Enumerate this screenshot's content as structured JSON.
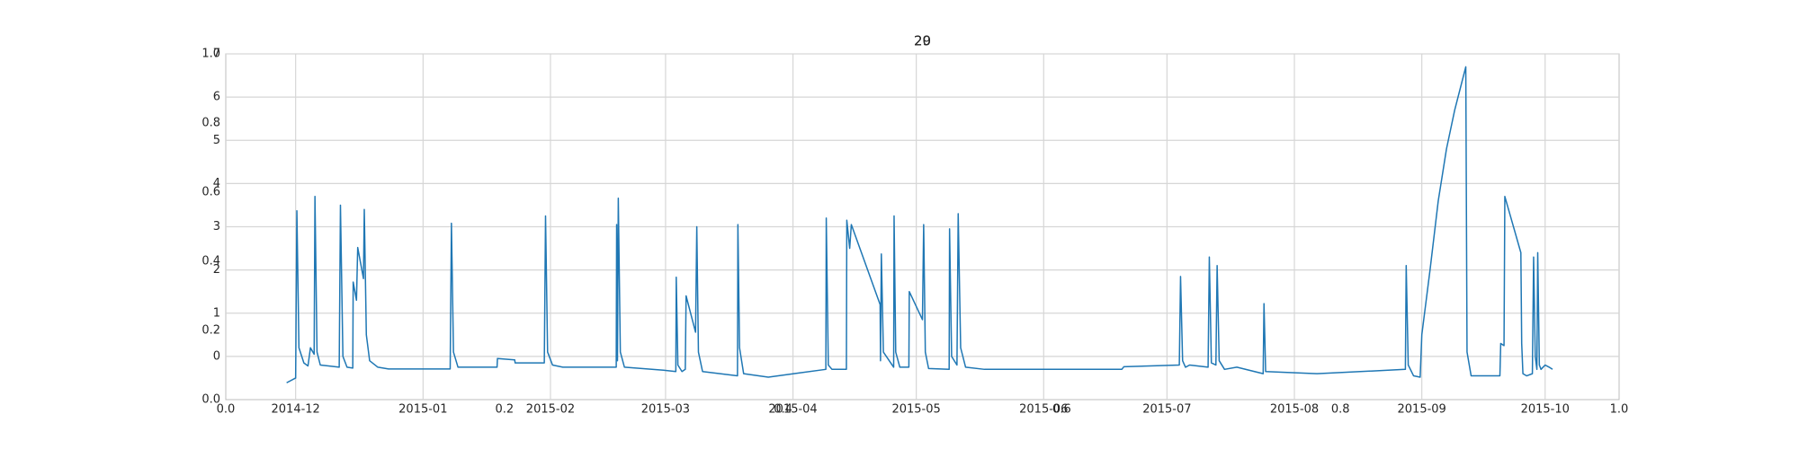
{
  "chart_data": [
    {
      "type": "axes",
      "title": "20",
      "xlim": [
        0,
        1
      ],
      "xticks": [
        {
          "value": 0,
          "label": "0.0"
        },
        {
          "value": 0.2,
          "label": "0.2"
        },
        {
          "value": 0.4,
          "label": "0.4"
        },
        {
          "value": 0.6,
          "label": "0.6"
        },
        {
          "value": 0.8,
          "label": "0.8"
        },
        {
          "value": 1,
          "label": "1.0"
        }
      ],
      "ylim": [
        0,
        1
      ],
      "yticks": [
        {
          "value": 0,
          "label": "0.0"
        },
        {
          "value": 0.2,
          "label": "0.2"
        },
        {
          "value": 0.4,
          "label": "0.4"
        },
        {
          "value": 0.6,
          "label": "0.6"
        },
        {
          "value": 0.8,
          "label": "0.8"
        },
        {
          "value": 1,
          "label": "1.0"
        }
      ],
      "grid": false
    },
    {
      "type": "line",
      "title": "29",
      "grid": true,
      "xlim": [
        -17,
        322
      ],
      "xticks": [
        {
          "value": 0,
          "label": "2014-12"
        },
        {
          "value": 31,
          "label": "2015-01"
        },
        {
          "value": 62,
          "label": "2015-02"
        },
        {
          "value": 90,
          "label": "2015-03"
        },
        {
          "value": 121,
          "label": "2015-04"
        },
        {
          "value": 151,
          "label": "2015-05"
        },
        {
          "value": 182,
          "label": "2015-06"
        },
        {
          "value": 212,
          "label": "2015-07"
        },
        {
          "value": 243,
          "label": "2015-08"
        },
        {
          "value": 274,
          "label": "2015-09"
        },
        {
          "value": 304,
          "label": "2015-10"
        }
      ],
      "ylim": [
        -1,
        7
      ],
      "yticks": [
        0,
        1,
        2,
        3,
        4,
        5,
        6,
        7
      ],
      "color": "#1f77b4",
      "x": [
        -2.2,
        0,
        0.3,
        0.8,
        2,
        3,
        3.6,
        4.5,
        4.7,
        5.2,
        6,
        8,
        10.6,
        10.9,
        11.5,
        12.5,
        13.9,
        14,
        14.8,
        15.1,
        16.5,
        16.7,
        17.2,
        18,
        20,
        22.6,
        37.6,
        37.9,
        38.4,
        39.5,
        49,
        49.1,
        53.3,
        53.4,
        60.5,
        60.8,
        61.3,
        62.5,
        65,
        78,
        78.1,
        78.3,
        78.5,
        79,
        80,
        89.5,
        92.5,
        92.6,
        93,
        94,
        94.8,
        95,
        97.3,
        97.6,
        98,
        99,
        107.5,
        107.6,
        108,
        109,
        115,
        122.8,
        129,
        129.1,
        129.6,
        130.5,
        134,
        134.1,
        134.8,
        135.2,
        142.2,
        142.3,
        142.5,
        143,
        145.5,
        145.6,
        146,
        147,
        149.2,
        149.3,
        152.5,
        152.8,
        153.2,
        154,
        159,
        159.1,
        159.6,
        160.9,
        161.2,
        161.8,
        163,
        167.6,
        201,
        201.5,
        215,
        215.3,
        215.8,
        216.5,
        217.5,
        222,
        222.3,
        222.8,
        223.9,
        224.2,
        224.7,
        226,
        229,
        235.4,
        235.6,
        236,
        248.5,
        270,
        270.2,
        270.7,
        272,
        273.6,
        274,
        276,
        278,
        280,
        282,
        284.7,
        285,
        286,
        293,
        293.2,
        294,
        294.2,
        298.1,
        298.3,
        298.6,
        299.5,
        300.9,
        301.2,
        301.6,
        302,
        302.2,
        302.6,
        303,
        304,
        305,
        305.8
      ],
      "values": [
        -0.61,
        -0.5,
        3.37,
        0.2,
        -0.15,
        -0.22,
        0.2,
        0.05,
        3.7,
        0.1,
        -0.2,
        -0.22,
        -0.25,
        3.5,
        0,
        -0.25,
        -0.27,
        1.72,
        1.3,
        2.52,
        1.8,
        3.4,
        0.5,
        -0.1,
        -0.25,
        -0.29,
        -0.29,
        3.08,
        0.1,
        -0.25,
        -0.25,
        -0.05,
        -0.08,
        -0.15,
        -0.15,
        3.25,
        0.1,
        -0.2,
        -0.25,
        -0.25,
        3.05,
        -0.1,
        3.66,
        0.1,
        -0.25,
        -0.32,
        -0.35,
        1.83,
        -0.2,
        -0.35,
        -0.3,
        1.4,
        0.56,
        3,
        0.1,
        -0.35,
        -0.45,
        3.05,
        0.2,
        -0.4,
        -0.48,
        -0.38,
        -0.3,
        3.2,
        -0.2,
        -0.3,
        -0.3,
        3.15,
        2.5,
        3.05,
        1.2,
        -0.1,
        2.37,
        0.1,
        -0.25,
        3.25,
        0.1,
        -0.25,
        -0.25,
        1.5,
        0.85,
        3.05,
        0.1,
        -0.28,
        -0.3,
        2.95,
        0,
        -0.2,
        3.3,
        0.2,
        -0.25,
        -0.3,
        -0.3,
        -0.24,
        -0.2,
        1.85,
        -0.1,
        -0.25,
        -0.2,
        -0.25,
        2.3,
        -0.15,
        -0.2,
        2.1,
        -0.1,
        -0.3,
        -0.25,
        -0.4,
        1.22,
        -0.35,
        -0.4,
        -0.3,
        2.1,
        -0.2,
        -0.45,
        -0.48,
        0.5,
        2,
        3.6,
        4.8,
        5.7,
        6.7,
        0.1,
        -0.45,
        -0.45,
        0.3,
        0.25,
        3.7,
        2.4,
        0.3,
        -0.4,
        -0.45,
        -0.4,
        2.3,
        0,
        -0.3,
        2.4,
        -0.2,
        -0.3,
        -0.2,
        -0.25,
        -0.3
      ]
    }
  ]
}
